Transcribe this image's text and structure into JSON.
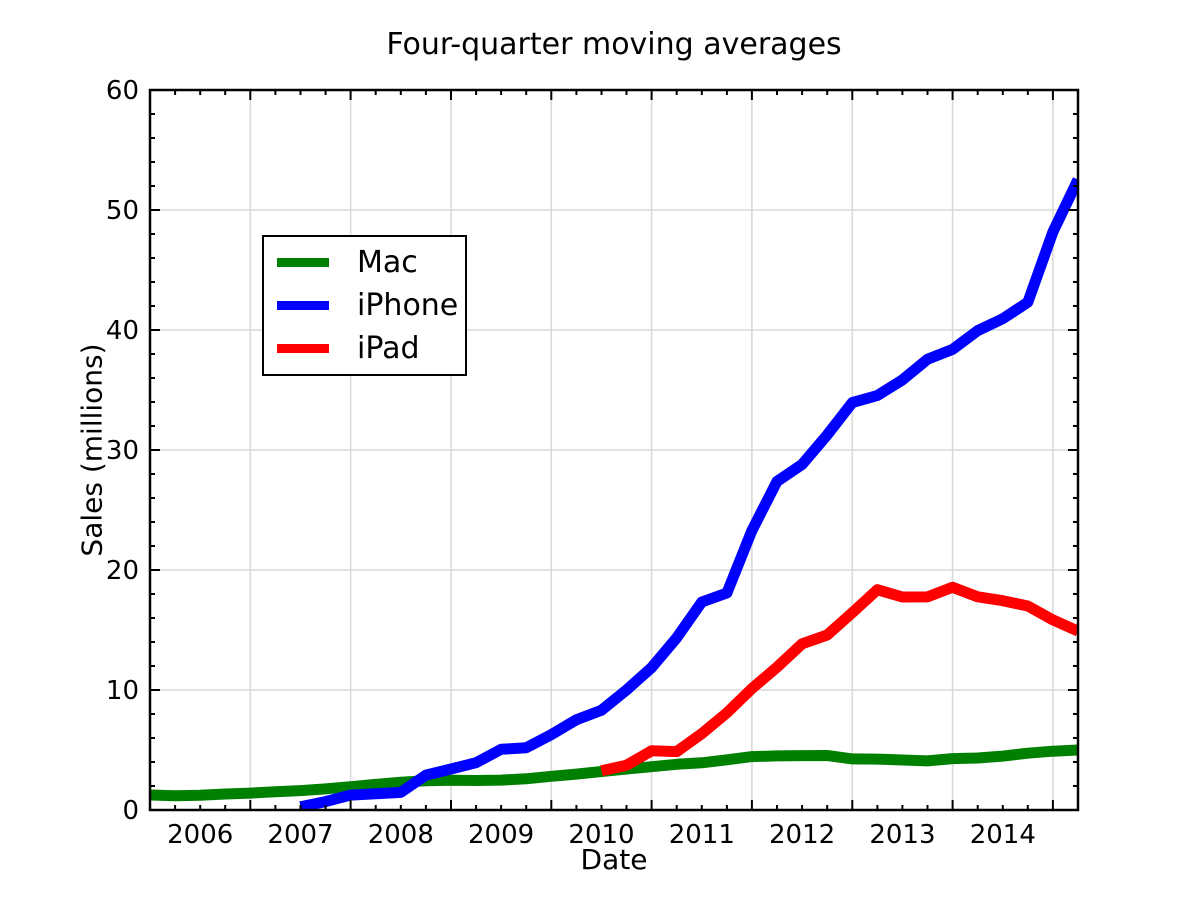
{
  "chart_data": {
    "type": "line",
    "title": "Four-quarter moving averages",
    "xlabel": "Date",
    "ylabel": "Sales (millions)",
    "xlim": [
      2006.0,
      2015.25
    ],
    "ylim": [
      0,
      60
    ],
    "grid": true,
    "grid_color": "#d9d9d9",
    "frame_color": "#000000",
    "legend_position": "upper-left-inside",
    "x_tick_labels": [
      "2006",
      "2007",
      "2008",
      "2009",
      "2010",
      "2011",
      "2012",
      "2013",
      "2014"
    ],
    "y_tick_values": [
      0,
      10,
      20,
      30,
      40,
      50,
      60
    ],
    "y_tick_labels": [
      "0",
      "10",
      "20",
      "30",
      "40",
      "50",
      "60"
    ],
    "x_minor_tick_interval_years": 0.25,
    "y_minor_tick_interval": 2,
    "series": [
      {
        "name": "Mac",
        "color": "#008000",
        "x_unit": "decimal_year_quarter_end",
        "x_start": 2006.0,
        "x_step": 0.25,
        "values": [
          1.25,
          1.18,
          1.23,
          1.33,
          1.41,
          1.52,
          1.62,
          1.76,
          1.94,
          2.13,
          2.32,
          2.43,
          2.48,
          2.46,
          2.49,
          2.6,
          2.81,
          2.99,
          3.21,
          3.42,
          3.61,
          3.81,
          3.93,
          4.18,
          4.45,
          4.51,
          4.53,
          4.54,
          4.26,
          4.24,
          4.17,
          4.09,
          4.28,
          4.33,
          4.49,
          4.73,
          4.9,
          5.0
        ]
      },
      {
        "name": "iPhone",
        "color": "#0000ff",
        "x_unit": "decimal_year_quarter_end",
        "x_start": 2007.5,
        "x_step": 0.25,
        "values": [
          0.27,
          0.7,
          1.24,
          1.35,
          1.47,
          2.91,
          3.42,
          3.94,
          5.06,
          5.18,
          6.28,
          7.52,
          8.32,
          10.0,
          11.87,
          14.35,
          17.33,
          18.08,
          23.28,
          27.38,
          28.8,
          31.26,
          33.95,
          34.54,
          35.84,
          37.57,
          38.38,
          39.95,
          40.94,
          42.31,
          48.17,
          52.53
        ]
      },
      {
        "name": "iPad",
        "color": "#ff0000",
        "x_unit": "decimal_year_quarter_end",
        "x_start": 2010.5,
        "x_step": 0.25,
        "values": [
          3.27,
          3.73,
          4.93,
          4.87,
          6.37,
          8.1,
          10.12,
          11.9,
          13.85,
          14.58,
          16.44,
          18.36,
          17.75,
          17.76,
          18.56,
          17.77,
          17.44,
          17.0,
          15.84,
          14.91
        ]
      }
    ]
  }
}
